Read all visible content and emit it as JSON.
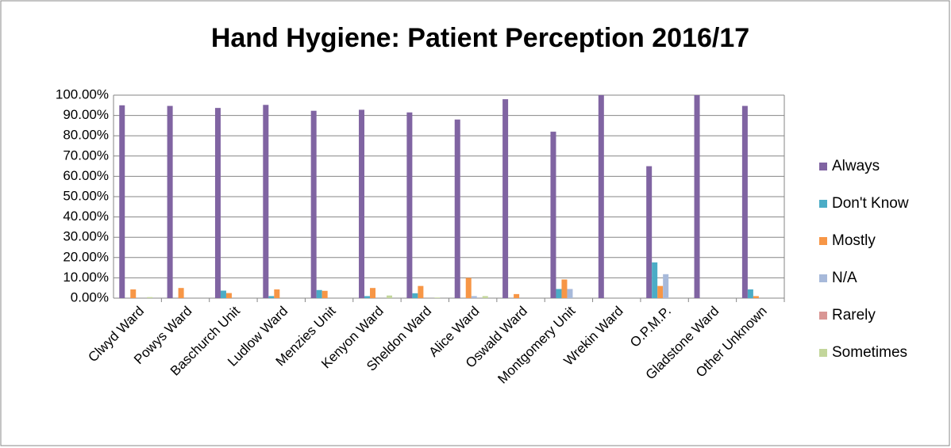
{
  "chart_data": {
    "type": "bar",
    "title": "Hand Hygiene: Patient Perception 2016/17",
    "categories": [
      "Clwyd Ward",
      "Powys Ward",
      "Baschurch Unit",
      "Ludlow Ward",
      "Menzies Unit",
      "Kenyon Ward",
      "Sheldon Ward",
      "Alice Ward",
      "Oswald Ward",
      "Montgomery Unit",
      "Wrekin Ward",
      "O.P.M.P.",
      "Gladstone Ward",
      "Other Unknown"
    ],
    "series": [
      {
        "name": "Always",
        "color": "#8064a2",
        "values": [
          95,
          94.7,
          93.7,
          95.2,
          92.3,
          92.8,
          91.5,
          88,
          98,
          82,
          100,
          65,
          100,
          94.7
        ]
      },
      {
        "name": "Don't Know",
        "color": "#4bacc6",
        "values": [
          0,
          0,
          3.7,
          1,
          4,
          1,
          2.4,
          0,
          0,
          4.5,
          0,
          17.6,
          0,
          4.3
        ]
      },
      {
        "name": "Mostly",
        "color": "#f79646",
        "values": [
          4.3,
          5,
          2.5,
          4.3,
          3.6,
          5,
          6,
          10,
          2,
          9.2,
          0,
          6,
          0,
          1
        ]
      },
      {
        "name": "N/A",
        "color": "#a7b9da",
        "values": [
          0,
          0,
          0,
          0,
          0,
          0,
          0,
          1,
          0,
          4.5,
          0,
          11.8,
          0,
          0
        ]
      },
      {
        "name": "Rarely",
        "color": "#d99694",
        "values": [
          0,
          0,
          0,
          0,
          0,
          0,
          0,
          0,
          0,
          0,
          0,
          0,
          0,
          0
        ]
      },
      {
        "name": "Sometimes",
        "color": "#c3d69b",
        "values": [
          0.5,
          0,
          0,
          0,
          0,
          1.3,
          0.3,
          1,
          0,
          0,
          0,
          0,
          0,
          0
        ]
      }
    ],
    "ylim": [
      0,
      100
    ],
    "yticks": [
      {
        "value": 0,
        "label": "0.00%"
      },
      {
        "value": 10,
        "label": "10.00%"
      },
      {
        "value": 20,
        "label": "20.00%"
      },
      {
        "value": 30,
        "label": "30.00%"
      },
      {
        "value": 40,
        "label": "40.00%"
      },
      {
        "value": 50,
        "label": "50.00%"
      },
      {
        "value": 60,
        "label": "60.00%"
      },
      {
        "value": 70,
        "label": "70.00%"
      },
      {
        "value": 80,
        "label": "80.00%"
      },
      {
        "value": 90,
        "label": "90.00%"
      },
      {
        "value": 100,
        "label": "100.00%"
      }
    ],
    "grid": true,
    "legend": "right"
  }
}
